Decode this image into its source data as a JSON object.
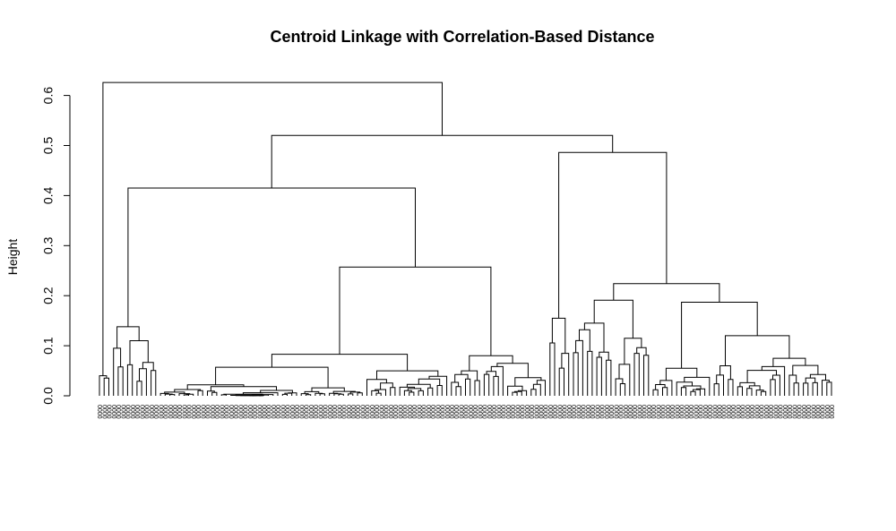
{
  "chart_data": {
    "type": "dendrogram",
    "title": "Centroid Linkage with Correlation-Based Distance",
    "ylabel": "Height",
    "xlabel": "",
    "ylim": [
      0,
      0.62
    ],
    "yticks": [
      0.0,
      0.1,
      0.2,
      0.3,
      0.4,
      0.5,
      0.6
    ],
    "ytick_labels": [
      "0.0",
      "0.1",
      "0.2",
      "0.3",
      "0.4",
      "0.5",
      "0.6"
    ],
    "leaf_label_char": "0",
    "leaf_count": 160,
    "major_merges": [
      {
        "name": "root",
        "height": 0.626
      },
      {
        "name": "left-main",
        "height": 0.415
      },
      {
        "name": "upper-split",
        "height": 0.52
      },
      {
        "name": "right-main",
        "height": 0.486
      },
      {
        "name": "middle-block",
        "height": 0.257
      },
      {
        "name": "right-block",
        "height": 0.224
      },
      {
        "name": "right-sub-a",
        "height": 0.191
      },
      {
        "name": "right-sub-b",
        "height": 0.187
      },
      {
        "name": "far-left-cluster",
        "height": 0.138
      },
      {
        "name": "right-far-cluster",
        "height": 0.12
      },
      {
        "name": "left-wide-cluster",
        "height": 0.083
      },
      {
        "name": "left-wide-sub",
        "height": 0.057
      }
    ]
  }
}
